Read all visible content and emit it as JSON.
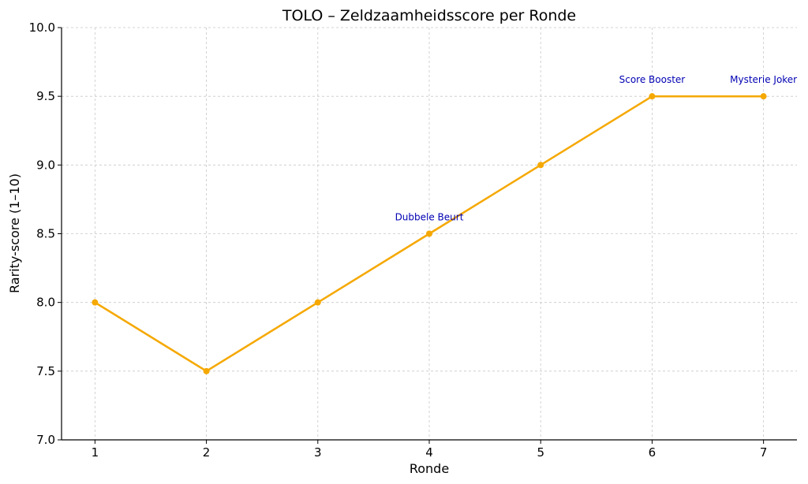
{
  "chart_data": {
    "type": "line",
    "title": "TOLO – Zeldzaamheidsscore per Ronde",
    "xlabel": "Ronde",
    "ylabel": "Rarity-score (1–10)",
    "x": [
      1,
      2,
      3,
      4,
      5,
      6,
      7
    ],
    "y": [
      8.0,
      7.5,
      8.0,
      8.5,
      9.0,
      9.5,
      9.5
    ],
    "xlim": [
      0.7,
      7.3
    ],
    "ylim": [
      7.0,
      10.0
    ],
    "xticks": [
      "1",
      "2",
      "3",
      "4",
      "5",
      "6",
      "7"
    ],
    "yticks": [
      "7.0",
      "7.5",
      "8.0",
      "8.5",
      "9.0",
      "9.5",
      "10.0"
    ],
    "grid": true,
    "line_color": "#f5a800",
    "annotation_color": "#0000b3",
    "annotations": [
      {
        "x": 4,
        "y": 8.5,
        "text": "Dubbele Beurt"
      },
      {
        "x": 6,
        "y": 9.5,
        "text": "Score Booster"
      },
      {
        "x": 7,
        "y": 9.5,
        "text": "Mysterie Joker"
      }
    ]
  }
}
